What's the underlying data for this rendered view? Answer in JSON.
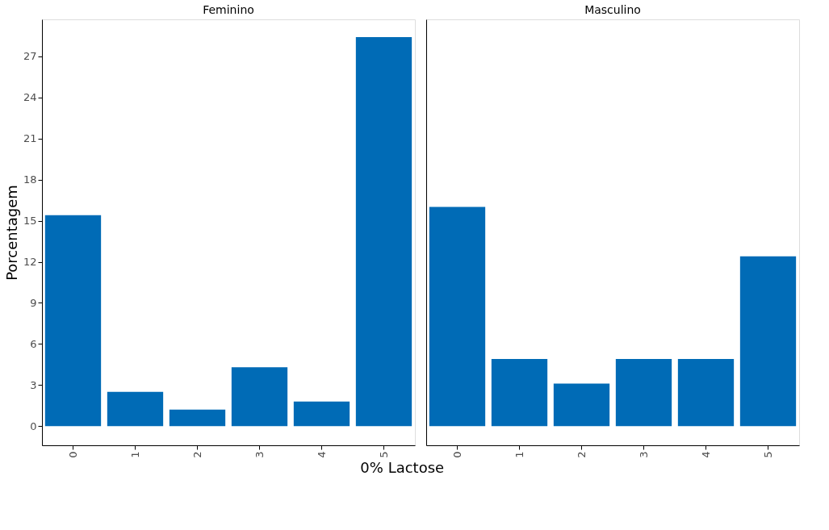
{
  "chart_data": [
    {
      "type": "bar",
      "title": "Feminino",
      "xlabel": "0% Lactose",
      "ylabel": "Porcentagem",
      "categories": [
        "0",
        "1",
        "2",
        "3",
        "4",
        "5"
      ],
      "values": [
        15.4,
        2.5,
        1.2,
        4.3,
        1.8,
        28.4
      ],
      "color": "#006bb6",
      "ylim": [
        -1.4,
        29.7
      ],
      "yticks": [
        0,
        3,
        6,
        9,
        12,
        15,
        18,
        21,
        24,
        27
      ],
      "grid": false
    },
    {
      "type": "bar",
      "title": "Masculino",
      "categories": [
        "0",
        "1",
        "2",
        "3",
        "4",
        "5"
      ],
      "values": [
        16.0,
        4.9,
        3.1,
        4.9,
        4.9,
        12.4
      ],
      "color": "#006bb6",
      "ylim": [
        -1.4,
        29.7
      ],
      "yticks": [
        0,
        3,
        6,
        9,
        12,
        15,
        18,
        21,
        24,
        27
      ],
      "grid": false,
      "tick_labels": "x"
    }
  ]
}
